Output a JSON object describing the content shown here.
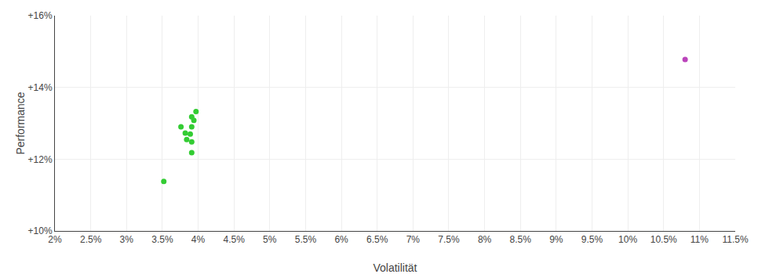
{
  "chart_data": {
    "type": "scatter",
    "xlabel": "Volatilität",
    "ylabel": "Performance",
    "grid": true,
    "xlim": [
      0.02,
      0.115
    ],
    "ylim": [
      0.1,
      0.16
    ],
    "xticks": [
      {
        "value": 0.02,
        "label": "2%"
      },
      {
        "value": 0.025,
        "label": "2.5%"
      },
      {
        "value": 0.03,
        "label": "3%"
      },
      {
        "value": 0.035,
        "label": "3.5%"
      },
      {
        "value": 0.04,
        "label": "4%"
      },
      {
        "value": 0.045,
        "label": "4.5%"
      },
      {
        "value": 0.05,
        "label": "5%"
      },
      {
        "value": 0.055,
        "label": "5.5%"
      },
      {
        "value": 0.06,
        "label": "6%"
      },
      {
        "value": 0.065,
        "label": "6.5%"
      },
      {
        "value": 0.07,
        "label": "7%"
      },
      {
        "value": 0.075,
        "label": "7.5%"
      },
      {
        "value": 0.08,
        "label": "8%"
      },
      {
        "value": 0.085,
        "label": "8.5%"
      },
      {
        "value": 0.09,
        "label": "9%"
      },
      {
        "value": 0.095,
        "label": "9.5%"
      },
      {
        "value": 0.1,
        "label": "10%"
      },
      {
        "value": 0.105,
        "label": "10.5%"
      },
      {
        "value": 0.11,
        "label": "11%"
      },
      {
        "value": 0.115,
        "label": "11.5%"
      }
    ],
    "yticks": [
      {
        "value": 0.1,
        "label": "+10%"
      },
      {
        "value": 0.12,
        "label": "+12%"
      },
      {
        "value": 0.14,
        "label": "+14%"
      },
      {
        "value": 0.16,
        "label": "+16%"
      }
    ],
    "series": [
      {
        "color": "#33cc33",
        "x": [
          0.0397,
          0.0391,
          0.0394,
          0.0376,
          0.0391,
          0.0382,
          0.0389,
          0.0384,
          0.0391,
          0.0391,
          0.0352
        ],
        "values": [
          0.1333,
          0.1318,
          0.1308,
          0.129,
          0.129,
          0.1273,
          0.127,
          0.1255,
          0.1248,
          0.1218,
          0.1138
        ]
      },
      {
        "color": "#bb44bb",
        "x": [
          0.108
        ],
        "values": [
          0.1478
        ]
      }
    ]
  }
}
